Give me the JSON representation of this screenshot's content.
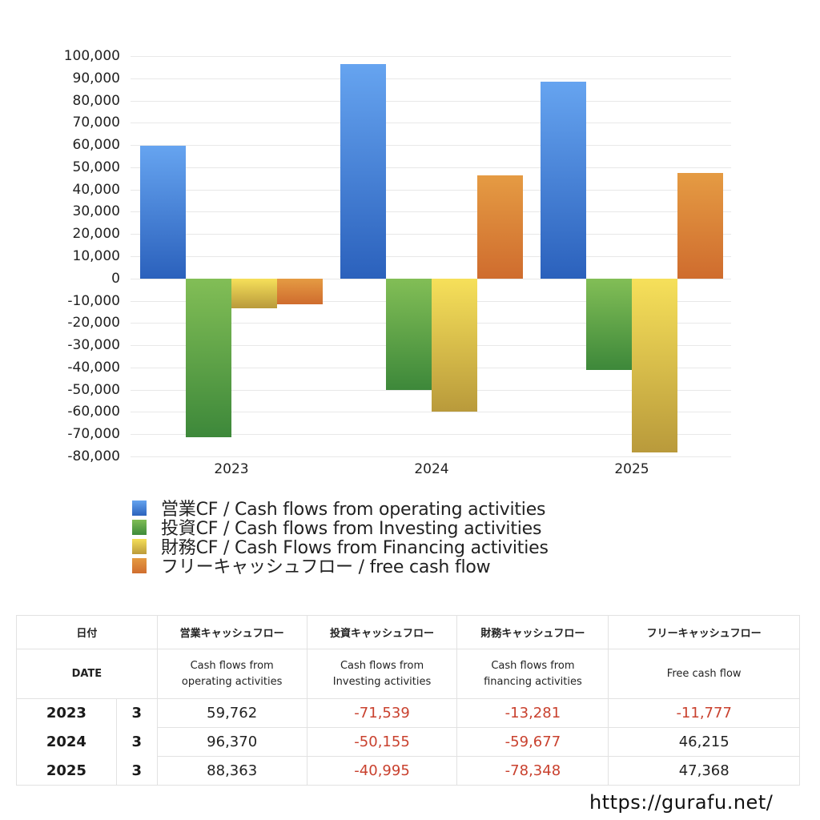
{
  "chart_data": {
    "type": "bar",
    "title": "",
    "xlabel": "",
    "ylabel": "",
    "categories": [
      "2023",
      "2024",
      "2025"
    ],
    "ylim": [
      -80000,
      100000
    ],
    "yticks": [
      100000,
      90000,
      80000,
      70000,
      60000,
      50000,
      40000,
      30000,
      20000,
      10000,
      0,
      -10000,
      -20000,
      -30000,
      -40000,
      -50000,
      -60000,
      -70000,
      -80000
    ],
    "ytick_labels": [
      "100,000",
      "90,000",
      "80,000",
      "70,000",
      "60,000",
      "50,000",
      "40,000",
      "30,000",
      "20,000",
      "10,000",
      "0",
      "-10,000",
      "-20,000",
      "-30,000",
      "-40,000",
      "-50,000",
      "-60,000",
      "-70,000",
      "-80,000"
    ],
    "grid": true,
    "legend_position": "bottom",
    "series": [
      {
        "name": "営業CF / Cash flows from operating activities",
        "color": "#3c7bd9",
        "values": [
          59762,
          96370,
          88363
        ]
      },
      {
        "name": "投資CF / Cash flows from Investing activities",
        "color": "#4f9c44",
        "values": [
          -71539,
          -50155,
          -40995
        ]
      },
      {
        "name": "財務CF / Cash Flows from Financing activities",
        "color": "#dcc046",
        "values": [
          -13281,
          -59677,
          -78348
        ]
      },
      {
        "name": "フリーキャッシュフロー / free cash flow",
        "color": "#d97a35",
        "values": [
          -11777,
          46215,
          47368
        ]
      }
    ]
  },
  "legend": [
    {
      "label": "営業CF / Cash flows from operating activities"
    },
    {
      "label": "投資CF / Cash flows from Investing activities"
    },
    {
      "label": "財務CF / Cash Flows from Financing activities"
    },
    {
      "label": "フリーキャッシュフロー / free cash flow"
    }
  ],
  "table": {
    "header_jp": [
      "日付",
      "営業キャッシュフロー",
      "投資キャッシュフロー",
      "財務キャッシュフロー",
      "フリーキャッシュフロー"
    ],
    "header_en": [
      "DATE",
      "Cash flows from operating activities",
      "Cash flows from Investing activities",
      "Cash flows from financing activities",
      "Free cash flow"
    ],
    "rows": [
      {
        "year": "2023",
        "month": "3",
        "operating": "59,762",
        "investing": "-71,539",
        "financing": "-13,281",
        "free": "-11,777"
      },
      {
        "year": "2024",
        "month": "3",
        "operating": "96,370",
        "investing": "-50,155",
        "financing": "-59,677",
        "free": "46,215"
      },
      {
        "year": "2025",
        "month": "3",
        "operating": "88,363",
        "investing": "-40,995",
        "financing": "-78,348",
        "free": "47,368"
      }
    ]
  },
  "footer": {
    "url": "https://gurafu.net/"
  },
  "colors": {
    "negative_text": "#c9412e"
  }
}
